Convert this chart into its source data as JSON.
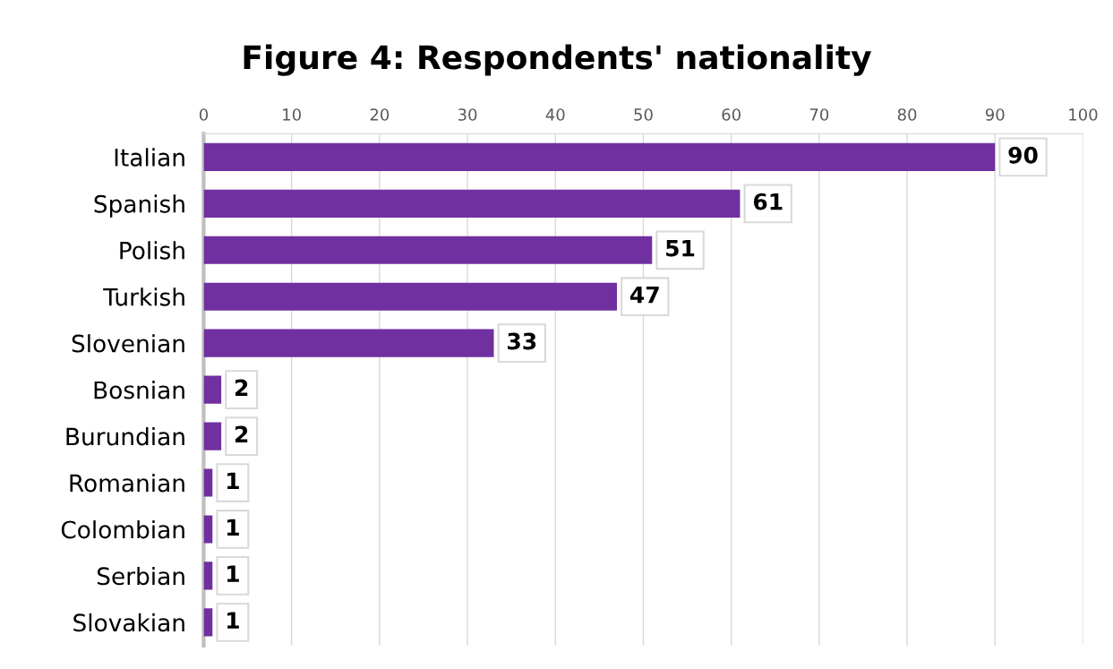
{
  "chart_data": {
    "type": "bar",
    "orientation": "horizontal",
    "title": "Figure 4: Respondents' nationality",
    "categories": [
      "Italian",
      "Spanish",
      "Polish",
      "Turkish",
      "Slovenian",
      "Bosnian",
      "Burundian",
      "Romanian",
      "Colombian",
      "Serbian",
      "Slovakian"
    ],
    "values": [
      90,
      61,
      51,
      47,
      33,
      2,
      2,
      1,
      1,
      1,
      1
    ],
    "color": "#7030a0",
    "xlim": [
      0,
      100
    ],
    "xticks": [
      0,
      10,
      20,
      30,
      40,
      50,
      60,
      70,
      80,
      90,
      100
    ],
    "grid": "x",
    "data_labels": true
  }
}
